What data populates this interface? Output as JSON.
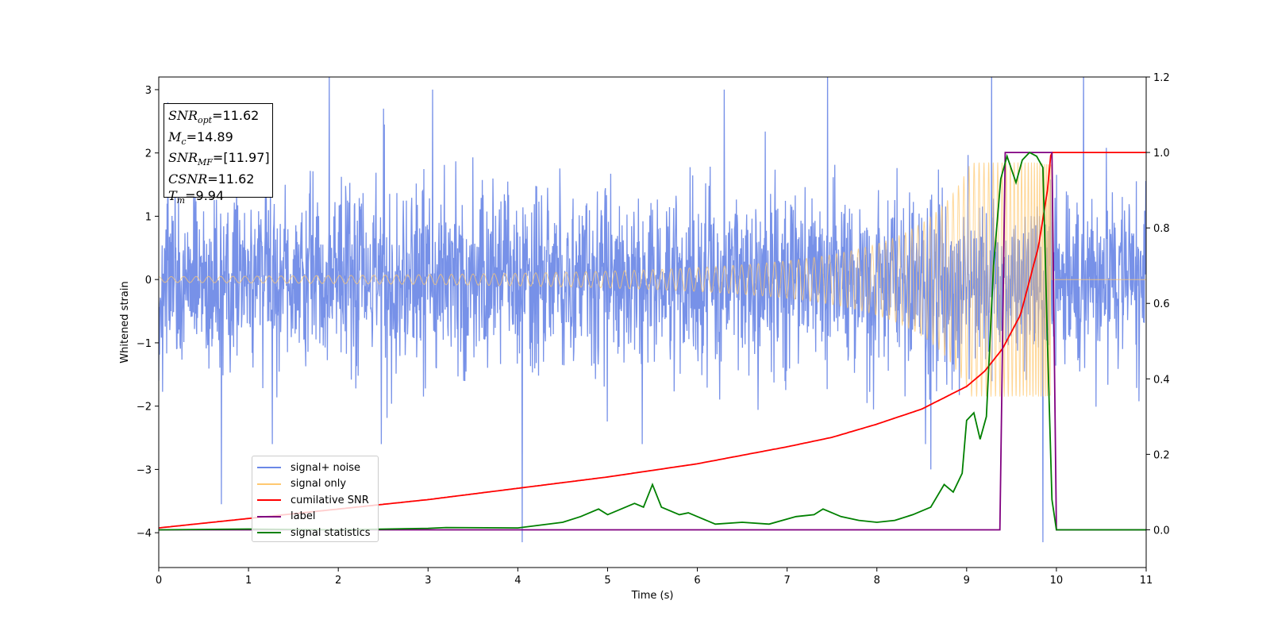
{
  "chart_data": {
    "type": "line",
    "xlabel": "Time (s)",
    "ylabel": "Whitened strain",
    "xlim": [
      0,
      11
    ],
    "ylim": [
      -4.55,
      3.2
    ],
    "y2lim": [
      -0.1,
      1.2
    ],
    "xticks": [
      0,
      1,
      2,
      3,
      4,
      5,
      6,
      7,
      8,
      9,
      10,
      11
    ],
    "yticks": [
      -4,
      -3,
      -2,
      -1,
      0,
      1,
      2,
      3
    ],
    "y2ticks": [
      "0.0",
      "0.2",
      "0.4",
      "0.6",
      "0.8",
      "1.0",
      "1.2"
    ],
    "legend_position": "lower-left",
    "annotations": {
      "snr_opt": "=11.62",
      "mc": "=14.89",
      "snr_mf": "=[11.97]",
      "csnr": "=11.62",
      "tm": "=9.94"
    },
    "series": [
      {
        "name": "signal+ noise",
        "axis": "left",
        "color": "#6b88e6",
        "kind": "noise",
        "typical_range": [
          -2.3,
          2.4
        ],
        "peaks": [
          [
            0.1,
            2.8
          ],
          [
            0.7,
            -3.55
          ],
          [
            1.9,
            3.25
          ],
          [
            3.05,
            3.0
          ],
          [
            4.05,
            -4.15
          ],
          [
            6.3,
            3.0
          ],
          [
            7.45,
            3.4
          ],
          [
            8.6,
            -3.0
          ],
          [
            9.28,
            3.45
          ],
          [
            9.85,
            -4.15
          ],
          [
            10.3,
            3.45
          ]
        ]
      },
      {
        "name": "signal only",
        "axis": "left",
        "color": "#ffc870",
        "kind": "chirp",
        "start": 0,
        "end": 9.95,
        "amplitude_end": 1.85
      },
      {
        "name": "cumilative SNR",
        "axis": "right",
        "color": "#ff0000",
        "x": [
          0,
          1,
          2,
          3,
          4,
          5,
          6,
          7,
          7.5,
          8,
          8.5,
          9,
          9.2,
          9.4,
          9.6,
          9.8,
          9.9,
          9.94,
          11
        ],
        "y": [
          0.005,
          0.03,
          0.055,
          0.08,
          0.11,
          0.14,
          0.175,
          0.22,
          0.245,
          0.28,
          0.32,
          0.38,
          0.42,
          0.48,
          0.57,
          0.75,
          0.9,
          1.0,
          1.0
        ]
      },
      {
        "name": "label",
        "axis": "right",
        "color": "#800080",
        "x": [
          0,
          9.37,
          9.43,
          9.95,
          10.0,
          11
        ],
        "y": [
          0,
          0,
          1.0,
          1.0,
          0,
          0
        ]
      },
      {
        "name": "signal statistics",
        "axis": "right",
        "color": "#008000",
        "x": [
          0,
          1,
          2,
          3,
          3.2,
          4,
          4.5,
          4.7,
          4.9,
          5.0,
          5.2,
          5.3,
          5.4,
          5.5,
          5.6,
          5.8,
          5.9,
          6.0,
          6.2,
          6.5,
          6.8,
          7.1,
          7.3,
          7.4,
          7.6,
          7.8,
          8.0,
          8.2,
          8.4,
          8.6,
          8.75,
          8.85,
          8.95,
          9.0,
          9.08,
          9.15,
          9.22,
          9.3,
          9.38,
          9.45,
          9.55,
          9.62,
          9.7,
          9.78,
          9.85,
          9.9,
          9.95,
          10.0,
          11
        ],
        "y": [
          0.0,
          0.002,
          0.0,
          0.004,
          0.006,
          0.005,
          0.02,
          0.035,
          0.055,
          0.04,
          0.06,
          0.07,
          0.06,
          0.12,
          0.06,
          0.04,
          0.045,
          0.035,
          0.015,
          0.02,
          0.015,
          0.035,
          0.04,
          0.055,
          0.035,
          0.025,
          0.02,
          0.025,
          0.04,
          0.06,
          0.12,
          0.1,
          0.15,
          0.29,
          0.31,
          0.24,
          0.3,
          0.7,
          0.93,
          0.99,
          0.92,
          0.98,
          1.0,
          0.99,
          0.96,
          0.5,
          0.08,
          0.0,
          0.0
        ]
      }
    ]
  }
}
